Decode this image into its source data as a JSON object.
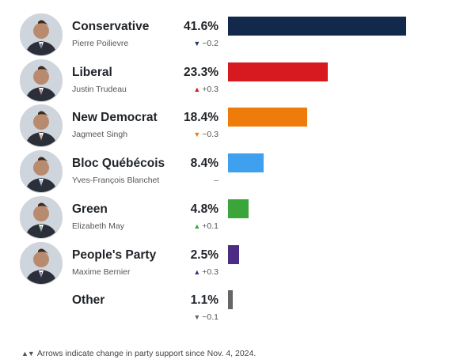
{
  "chart_data": {
    "type": "bar",
    "orientation": "horizontal",
    "categories": [
      "Conservative",
      "Liberal",
      "New Democrat",
      "Bloc Québécois",
      "Green",
      "People's Party",
      "Other"
    ],
    "values": [
      41.6,
      23.3,
      18.4,
      8.4,
      4.8,
      2.5,
      1.1
    ],
    "xlim": [
      0,
      41.6
    ],
    "rows": [
      {
        "party": "Conservative",
        "leader": "Pierre Poilievre",
        "value": 41.6,
        "pct_label": "41.6%",
        "change": "−0.2",
        "direction": "down",
        "color": "#13294b",
        "arrow_color": "#1f3a6b",
        "has_photo": true
      },
      {
        "party": "Liberal",
        "leader": "Justin Trudeau",
        "value": 23.3,
        "pct_label": "23.3%",
        "change": "+0.3",
        "direction": "up",
        "color": "#d71920",
        "arrow_color": "#d71920",
        "has_photo": true
      },
      {
        "party": "New Democrat",
        "leader": "Jagmeet Singh",
        "value": 18.4,
        "pct_label": "18.4%",
        "change": "−0.3",
        "direction": "down",
        "color": "#ef7b0a",
        "arrow_color": "#ef7b0a",
        "has_photo": true
      },
      {
        "party": "Bloc Québécois",
        "leader": "Yves-François Blanchet",
        "value": 8.4,
        "pct_label": "8.4%",
        "change": "–",
        "direction": "none",
        "color": "#3ea0ee",
        "arrow_color": "#777777",
        "has_photo": true
      },
      {
        "party": "Green",
        "leader": "Elizabeth May",
        "value": 4.8,
        "pct_label": "4.8%",
        "change": "+0.1",
        "direction": "up",
        "color": "#3aa63a",
        "arrow_color": "#3aa63a",
        "has_photo": true
      },
      {
        "party": "People's Party",
        "leader": "Maxime Bernier",
        "value": 2.5,
        "pct_label": "2.5%",
        "change": "+0.3",
        "direction": "up",
        "color": "#4b2e83",
        "arrow_color": "#4b2e83",
        "has_photo": true
      },
      {
        "party": "Other",
        "leader": "",
        "value": 1.1,
        "pct_label": "1.1%",
        "change": "−0.1",
        "direction": "down",
        "color": "#666666",
        "arrow_color": "#666666",
        "has_photo": false
      }
    ]
  },
  "footnote": {
    "arrows": "▲▼",
    "text": "Arrows indicate change in party support since Nov. 4, 2024."
  }
}
